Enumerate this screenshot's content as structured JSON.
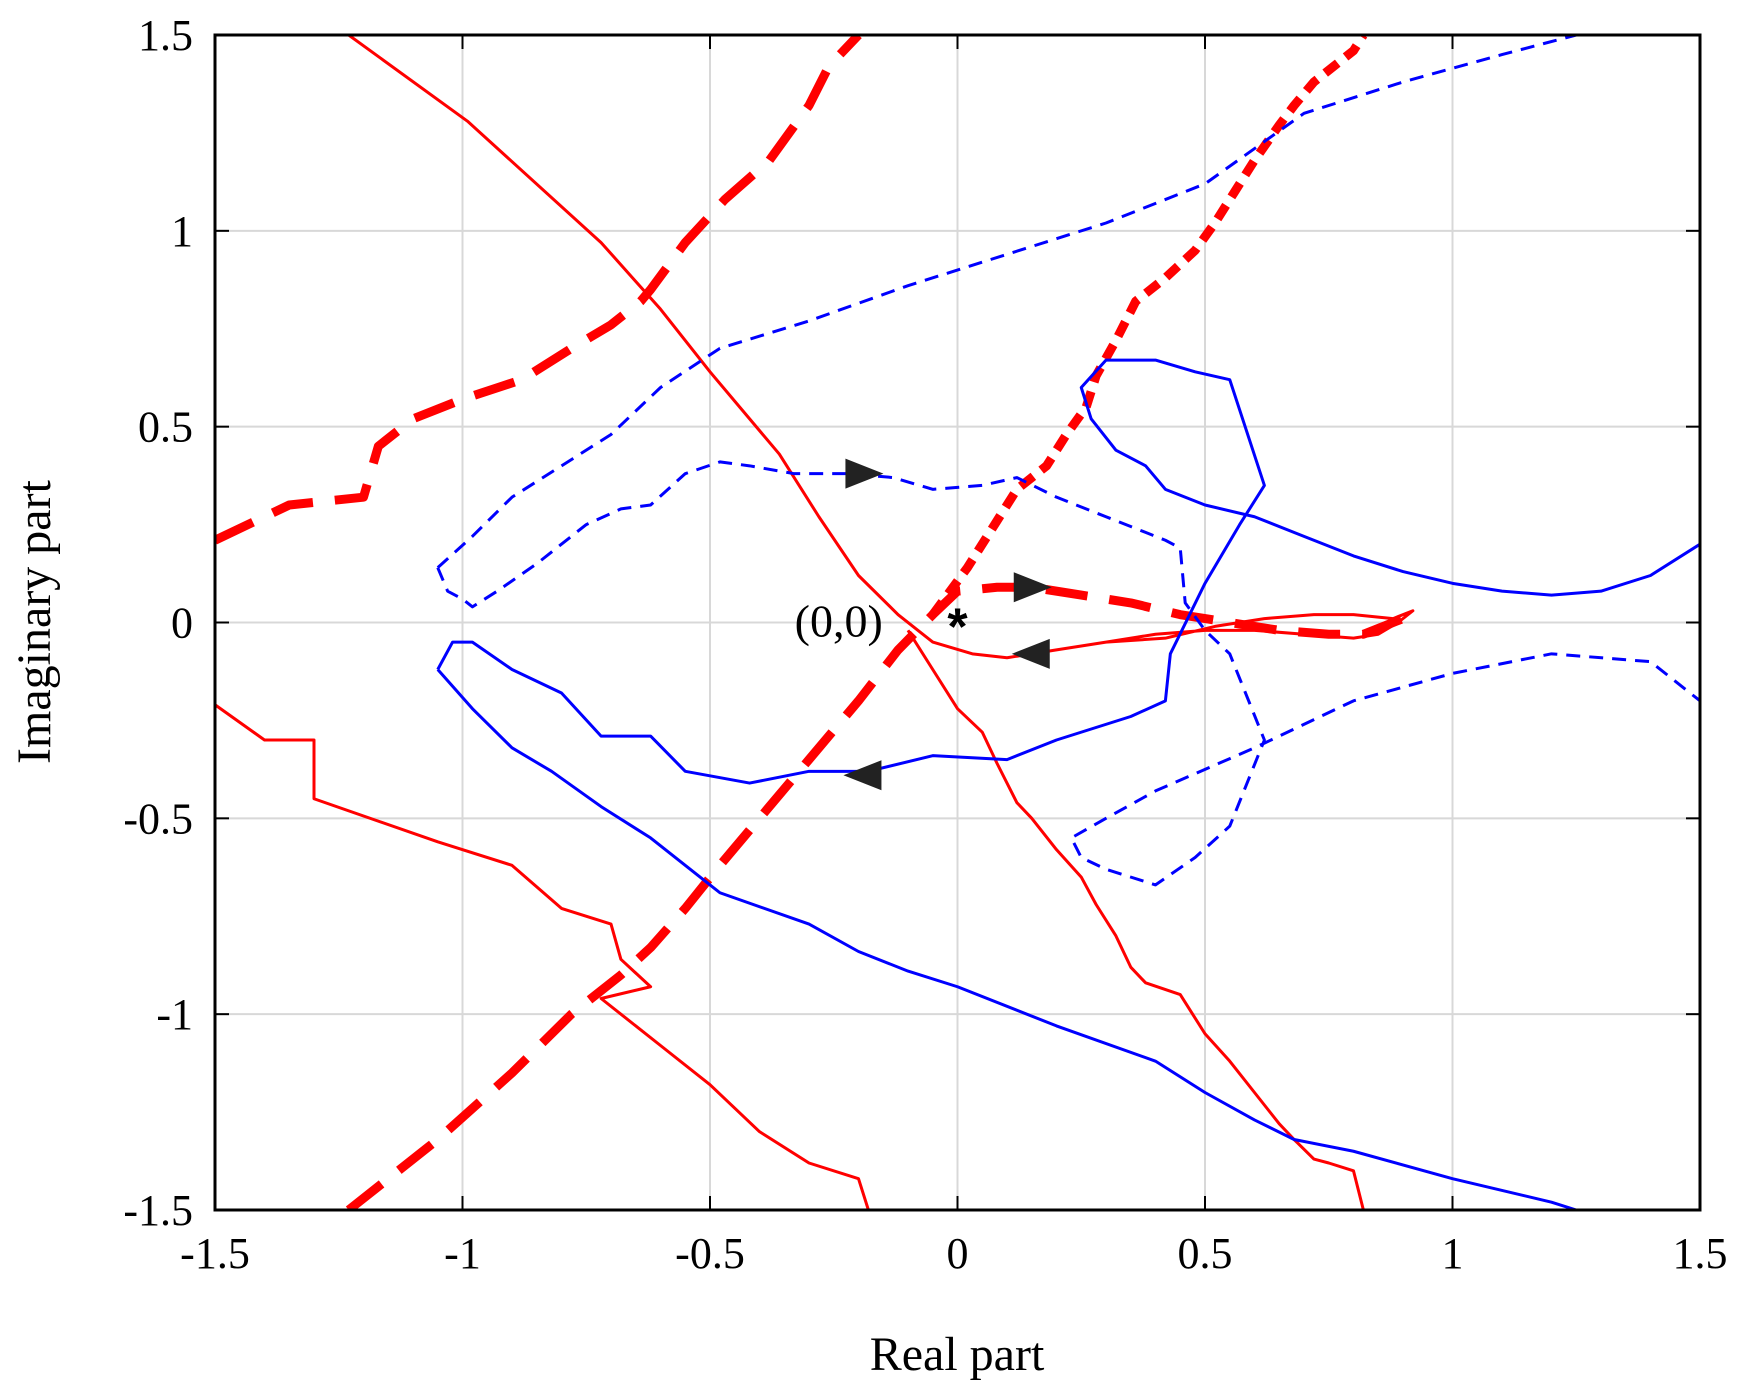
{
  "chart_data": {
    "type": "line",
    "title": "",
    "xlabel": "Real part",
    "ylabel": "Imaginary part",
    "xlim": [
      -1.5,
      1.5
    ],
    "ylim": [
      -1.5,
      1.5
    ],
    "xticks": [
      -1.5,
      -1,
      -0.5,
      0,
      0.5,
      1,
      1.5
    ],
    "yticks": [
      -1.5,
      -1,
      -0.5,
      0,
      0.5,
      1,
      1.5
    ],
    "xtick_labels": [
      "-1.5",
      "-1",
      "-0.5",
      "0",
      "0.5",
      "1",
      "1.5"
    ],
    "ytick_labels": [
      "-1.5",
      "-1",
      "-0.5",
      "0",
      "0.5",
      "1",
      "1.5"
    ],
    "grid": true,
    "annotation": {
      "text": "(0,0)",
      "x": -0.24,
      "y": 0.0
    },
    "origin_marker": {
      "symbol": "*",
      "x": 0.0,
      "y": 0.0
    },
    "series": [
      {
        "color": "#ff0000",
        "style": "solid",
        "width": 3,
        "x": [
          -1.23,
          -0.99,
          -0.72,
          -0.6,
          -0.5,
          -0.36,
          -0.28,
          -0.2,
          -0.12,
          -0.05,
          0.03,
          0.1,
          0.2,
          0.3,
          0.42,
          0.52,
          0.62,
          0.72,
          0.8,
          0.88,
          0.92,
          0.89,
          0.85,
          0.8,
          0.7,
          0.6,
          0.5,
          0.4,
          0.3,
          0.2,
          0.1
        ],
        "y": [
          1.5,
          1.28,
          0.97,
          0.8,
          0.64,
          0.43,
          0.27,
          0.12,
          0.02,
          -0.05,
          -0.08,
          -0.09,
          -0.07,
          -0.05,
          -0.04,
          -0.01,
          0.01,
          0.02,
          0.02,
          0.01,
          0.03,
          0.0,
          -0.03,
          -0.04,
          -0.03,
          -0.02,
          -0.02,
          -0.03,
          -0.05,
          -0.07,
          -0.09
        ]
      },
      {
        "color": "#ff0000",
        "style": "solid",
        "width": 3,
        "x": [
          -0.1,
          -0.05,
          0.0,
          0.05,
          0.08,
          0.12,
          0.15,
          0.2,
          0.25,
          0.28,
          0.32,
          0.35,
          0.38,
          0.45,
          0.5,
          0.55,
          0.6,
          0.65,
          0.68,
          0.72,
          0.75,
          0.8,
          0.82
        ],
        "y": [
          -0.02,
          -0.12,
          -0.22,
          -0.28,
          -0.36,
          -0.46,
          -0.5,
          -0.58,
          -0.65,
          -0.72,
          -0.8,
          -0.88,
          -0.92,
          -0.95,
          -1.05,
          -1.12,
          -1.2,
          -1.28,
          -1.32,
          -1.37,
          -1.38,
          -1.4,
          -1.5
        ]
      },
      {
        "color": "#ff0000",
        "style": "solid",
        "width": 3,
        "x": [
          -1.5,
          -1.4,
          -1.3,
          -1.3,
          -1.05,
          -0.9,
          -0.8,
          -0.7,
          -0.68,
          -0.62,
          -0.72,
          -0.6,
          -0.5,
          -0.4,
          -0.3,
          -0.2,
          -0.18
        ],
        "y": [
          -0.21,
          -0.3,
          -0.3,
          -0.45,
          -0.56,
          -0.62,
          -0.73,
          -0.77,
          -0.86,
          -0.93,
          -0.96,
          -1.08,
          -1.18,
          -1.3,
          -1.38,
          -1.42,
          -1.5
        ]
      },
      {
        "color": "#ff0000",
        "style": "dashed-thick",
        "width": 9,
        "x": [
          -1.5,
          -1.35,
          -1.2,
          -1.17,
          -1.1,
          -1.0,
          -0.88,
          -0.78,
          -0.7,
          -0.64,
          -0.62,
          -0.55,
          -0.47,
          -0.38,
          -0.3,
          -0.26,
          -0.2
        ],
        "y": [
          0.21,
          0.3,
          0.32,
          0.45,
          0.52,
          0.57,
          0.62,
          0.7,
          0.76,
          0.82,
          0.85,
          0.97,
          1.08,
          1.18,
          1.32,
          1.42,
          1.5
        ]
      },
      {
        "color": "#ff0000",
        "style": "dashed-thick",
        "width": 9,
        "x": [
          -1.23,
          -1.05,
          -0.9,
          -0.78,
          -0.68,
          -0.62,
          -0.55,
          -0.48,
          -0.38,
          -0.3,
          -0.2,
          -0.12,
          -0.05,
          0.0,
          0.08,
          0.15,
          0.25,
          0.35,
          0.45,
          0.55,
          0.65,
          0.75,
          0.82,
          0.92
        ],
        "y": [
          -1.5,
          -1.32,
          -1.15,
          -1.0,
          -0.9,
          -0.83,
          -0.73,
          -0.62,
          -0.47,
          -0.35,
          -0.2,
          -0.07,
          0.02,
          0.08,
          0.09,
          0.09,
          0.07,
          0.05,
          0.02,
          0.0,
          -0.02,
          -0.03,
          -0.03,
          0.02
        ]
      },
      {
        "color": "#ff0000",
        "style": "dashed-dense",
        "width": 9,
        "x": [
          -0.05,
          0.02,
          0.08,
          0.12,
          0.18,
          0.22,
          0.26,
          0.28,
          0.32,
          0.36,
          0.42,
          0.48,
          0.52,
          0.56,
          0.6,
          0.65,
          0.68,
          0.72,
          0.76,
          0.8,
          0.82
        ],
        "y": [
          0.02,
          0.14,
          0.26,
          0.34,
          0.4,
          0.48,
          0.55,
          0.63,
          0.72,
          0.82,
          0.88,
          0.95,
          1.02,
          1.1,
          1.18,
          1.27,
          1.32,
          1.38,
          1.42,
          1.46,
          1.5
        ]
      },
      {
        "color": "#0000ff",
        "style": "solid",
        "width": 3,
        "x": [
          -1.05,
          -1.02,
          -0.98,
          -0.9,
          -0.8,
          -0.72,
          -0.62,
          -0.55,
          -0.42,
          -0.3,
          -0.18,
          -0.05,
          0.1,
          0.2,
          0.35,
          0.42,
          0.43,
          0.5,
          0.57,
          0.62,
          0.55,
          0.48,
          0.4,
          0.3,
          0.25,
          0.27,
          0.32,
          0.38,
          0.42,
          0.5,
          0.6,
          0.7,
          0.8,
          0.9,
          1.0,
          1.1,
          1.2,
          1.3,
          1.4,
          1.5
        ],
        "y": [
          -0.12,
          -0.05,
          -0.05,
          -0.12,
          -0.18,
          -0.29,
          -0.29,
          -0.38,
          -0.41,
          -0.38,
          -0.38,
          -0.34,
          -0.35,
          -0.3,
          -0.24,
          -0.2,
          -0.08,
          0.1,
          0.25,
          0.35,
          0.62,
          0.64,
          0.67,
          0.67,
          0.6,
          0.52,
          0.44,
          0.4,
          0.34,
          0.3,
          0.27,
          0.22,
          0.17,
          0.13,
          0.1,
          0.08,
          0.07,
          0.08,
          0.12,
          0.2
        ]
      },
      {
        "color": "#0000ff",
        "style": "solid",
        "width": 3,
        "x": [
          -1.05,
          -0.98,
          -0.9,
          -0.82,
          -0.72,
          -0.62,
          -0.48,
          -0.3,
          -0.2,
          -0.1,
          0.0,
          0.2,
          0.4,
          0.5,
          0.6,
          0.68,
          0.8,
          1.0,
          1.2,
          1.25
        ],
        "y": [
          -0.12,
          -0.22,
          -0.32,
          -0.38,
          -0.47,
          -0.55,
          -0.69,
          -0.77,
          -0.84,
          -0.89,
          -0.93,
          -1.03,
          -1.12,
          -1.2,
          -1.27,
          -1.32,
          -1.35,
          -1.42,
          -1.48,
          -1.5
        ]
      },
      {
        "color": "#0000ff",
        "style": "dashed",
        "width": 3,
        "x": [
          -1.05,
          -1.03,
          -1.0,
          -0.98,
          -0.93,
          -0.85,
          -0.75,
          -0.68,
          -0.62,
          -0.55,
          -0.48,
          -0.42,
          -0.33,
          -0.22,
          -0.13,
          -0.05,
          0.05,
          0.12,
          0.2,
          0.3,
          0.38,
          0.42,
          0.45,
          0.46,
          0.5,
          0.55,
          0.62,
          0.62,
          0.55,
          0.48,
          0.4,
          0.3,
          0.25,
          0.23,
          0.3,
          0.4,
          0.6,
          0.8,
          1.0,
          1.2,
          1.4,
          1.5
        ],
        "y": [
          0.14,
          0.08,
          0.06,
          0.04,
          0.08,
          0.15,
          0.25,
          0.29,
          0.3,
          0.38,
          0.41,
          0.4,
          0.38,
          0.38,
          0.37,
          0.34,
          0.35,
          0.37,
          0.32,
          0.27,
          0.23,
          0.21,
          0.19,
          0.05,
          -0.02,
          -0.08,
          -0.3,
          -0.3,
          -0.52,
          -0.6,
          -0.67,
          -0.63,
          -0.6,
          -0.55,
          -0.5,
          -0.43,
          -0.32,
          -0.2,
          -0.13,
          -0.08,
          -0.1,
          -0.2
        ]
      },
      {
        "color": "#0000ff",
        "style": "dashed",
        "width": 3,
        "x": [
          -1.05,
          -0.98,
          -0.9,
          -0.8,
          -0.7,
          -0.6,
          -0.48,
          -0.3,
          -0.1,
          0.1,
          0.3,
          0.5,
          0.7,
          0.9,
          1.1,
          1.25
        ],
        "y": [
          0.14,
          0.22,
          0.32,
          0.4,
          0.48,
          0.6,
          0.7,
          0.77,
          0.86,
          0.94,
          1.02,
          1.12,
          1.3,
          1.38,
          1.45,
          1.5
        ]
      }
    ],
    "direction_markers": [
      {
        "x": -0.19,
        "y": 0.38,
        "dir": "right"
      },
      {
        "x": 0.15,
        "y": 0.09,
        "dir": "right"
      },
      {
        "x": 0.15,
        "y": -0.08,
        "dir": "left"
      },
      {
        "x": -0.19,
        "y": -0.39,
        "dir": "left"
      }
    ]
  }
}
